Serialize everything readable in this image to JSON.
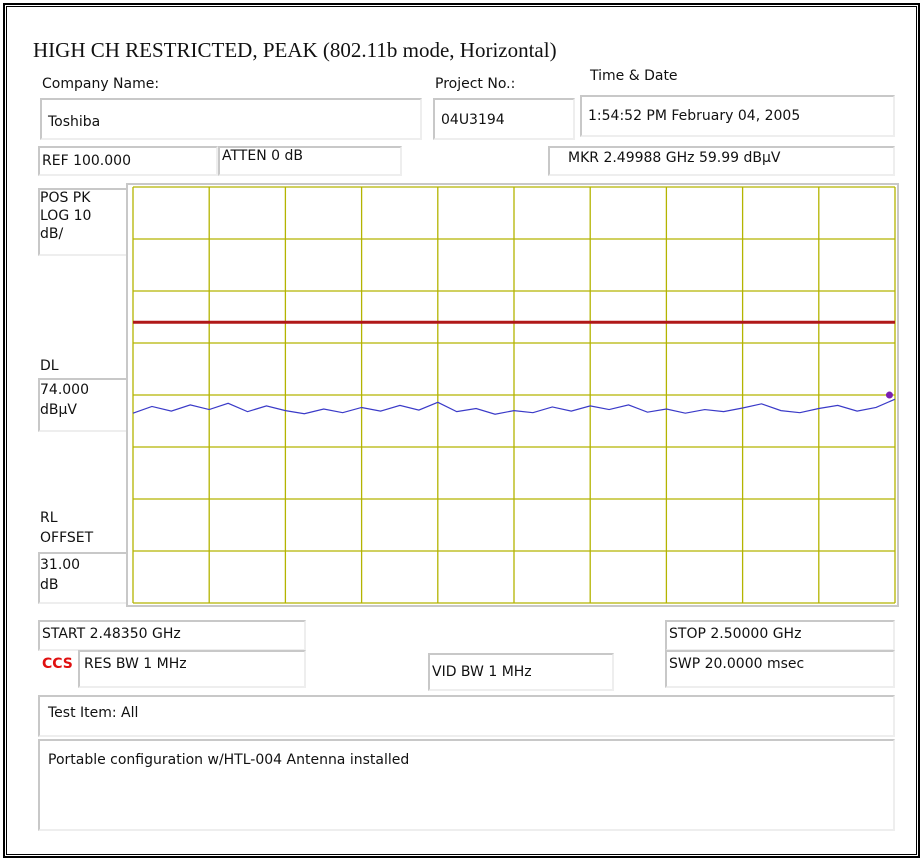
{
  "title": "HIGH CH RESTRICTED, PEAK (802.11b mode, Horizontal)",
  "header": {
    "company_label": "Company Name:",
    "company": "Toshiba",
    "project_label": "Project No.:",
    "project": "04U3194",
    "time_label": "Time & Date",
    "time": "1:54:52 PM February 04, 2005"
  },
  "settings": {
    "ref": "REF 100.000",
    "atten": "ATTEN 0 dB",
    "marker": "MKR 2.49988 GHz   59.99 dBµV",
    "mode": "POS PK",
    "scale": "LOG 10",
    "scale_unit": "dB/",
    "dl_label": "DL",
    "dl_value": "74.000",
    "dl_unit": "dBµV",
    "rl_label": "RL",
    "rl_offset_label": "OFFSET",
    "rl_value": "31.00",
    "rl_unit": "dB",
    "start": "START 2.48350 GHz",
    "stop": "STOP 2.50000 GHz",
    "logo": "CCS",
    "res_bw": "RES BW 1 MHz",
    "vid_bw": "VID BW 1 MHz",
    "sweep": "SWP  20.0000 msec"
  },
  "notes": {
    "test_item": "Test Item: All",
    "comment": "Portable configuration w/HTL-004 Antenna installed"
  },
  "chart_data": {
    "type": "line",
    "xlim": [
      2.4835,
      2.5
    ],
    "xticks": [
      2.4835,
      2.48515,
      2.4868,
      2.48845,
      2.4901,
      2.49175,
      2.4934,
      2.49505,
      2.4967,
      2.49835,
      2.5
    ],
    "ylim": [
      20,
      100
    ],
    "yticks": [
      20,
      30,
      40,
      50,
      60,
      70,
      80,
      90,
      100
    ],
    "grid": true,
    "grid_color": "#b4b400",
    "display_line": {
      "value": 74,
      "color": "#b01818"
    },
    "marker": {
      "x": 2.49988,
      "y": 59.99,
      "color": "#7a1fb0"
    },
    "series": [
      {
        "color": "#3a3ac8",
        "x": [
          2.4835,
          2.48391,
          2.48433,
          2.48474,
          2.48515,
          2.48556,
          2.48598,
          2.48639,
          2.4868,
          2.48721,
          2.48763,
          2.48804,
          2.48845,
          2.48886,
          2.48928,
          2.48969,
          2.4901,
          2.49051,
          2.49093,
          2.49134,
          2.49175,
          2.49216,
          2.49258,
          2.49299,
          2.4934,
          2.49381,
          2.49423,
          2.49464,
          2.49505,
          2.49546,
          2.49588,
          2.49629,
          2.4967,
          2.49711,
          2.49753,
          2.49794,
          2.49835,
          2.49876,
          2.49918,
          2.49959,
          2.5
        ],
        "values": [
          56.5,
          57.8,
          56.9,
          58.1,
          57.2,
          58.4,
          56.8,
          57.9,
          57.0,
          56.4,
          57.3,
          56.6,
          57.6,
          56.9,
          58.0,
          57.1,
          58.6,
          56.8,
          57.4,
          56.3,
          57.0,
          56.6,
          57.7,
          56.9,
          57.9,
          57.2,
          58.1,
          56.7,
          57.3,
          56.5,
          57.2,
          56.8,
          57.5,
          58.3,
          57.0,
          56.6,
          57.4,
          58.0,
          56.9,
          57.6,
          59.2
        ]
      }
    ]
  }
}
